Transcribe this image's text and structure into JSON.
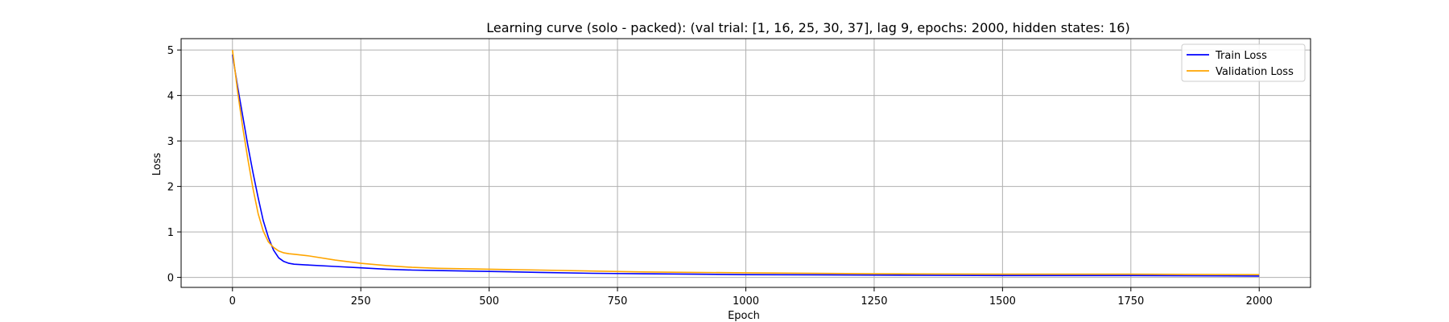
{
  "chart_data": {
    "type": "line",
    "title": "Learning curve (solo - packed): (val trial: [1, 16, 25, 30, 37], lag 9, epochs: 2000, hidden states: 16)",
    "xlabel": "Epoch",
    "ylabel": "Loss",
    "xlim": [
      -100,
      2100
    ],
    "ylim": [
      -0.22,
      5.25
    ],
    "xticks": [
      0,
      250,
      500,
      750,
      1000,
      1250,
      1500,
      1750,
      2000
    ],
    "yticks": [
      0,
      1,
      2,
      3,
      4,
      5
    ],
    "grid": true,
    "legend_position": "top-right",
    "series": [
      {
        "name": "Train Loss",
        "color": "#0000ff",
        "x": [
          0,
          10,
          20,
          30,
          40,
          50,
          60,
          70,
          80,
          90,
          100,
          110,
          120,
          150,
          200,
          250,
          300,
          350,
          400,
          500,
          600,
          700,
          800,
          900,
          1000,
          1250,
          1500,
          1750,
          2000
        ],
        "y": [
          4.9,
          4.2,
          3.55,
          2.9,
          2.3,
          1.75,
          1.25,
          0.88,
          0.6,
          0.43,
          0.35,
          0.31,
          0.29,
          0.27,
          0.24,
          0.21,
          0.18,
          0.16,
          0.15,
          0.13,
          0.11,
          0.09,
          0.08,
          0.07,
          0.06,
          0.05,
          0.04,
          0.04,
          0.03
        ]
      },
      {
        "name": "Validation Loss",
        "color": "#ffa500",
        "x": [
          0,
          10,
          20,
          30,
          40,
          50,
          60,
          70,
          80,
          90,
          100,
          110,
          120,
          150,
          200,
          250,
          300,
          350,
          400,
          500,
          600,
          700,
          800,
          900,
          1000,
          1250,
          1500,
          1750,
          2000
        ],
        "y": [
          5.0,
          4.1,
          3.3,
          2.6,
          1.95,
          1.4,
          1.02,
          0.78,
          0.66,
          0.58,
          0.54,
          0.52,
          0.51,
          0.47,
          0.38,
          0.31,
          0.26,
          0.22,
          0.2,
          0.18,
          0.16,
          0.14,
          0.12,
          0.11,
          0.1,
          0.08,
          0.07,
          0.07,
          0.06
        ]
      }
    ]
  }
}
